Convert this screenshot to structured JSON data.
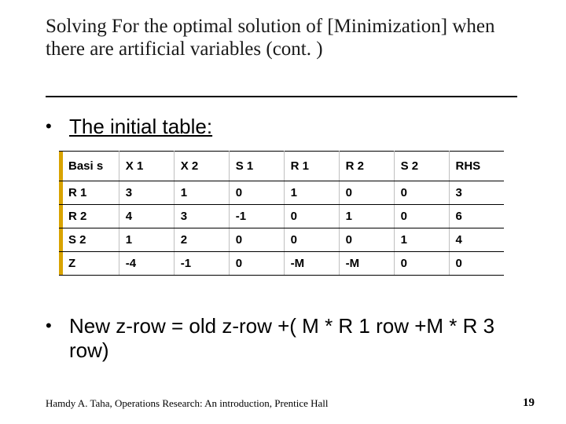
{
  "title": "Solving For the optimal solution of [Minimization] when there are artificial variables (cont. )",
  "bullet_initial": "The initial table:",
  "bullet_zrow": "New z-row = old z-row +(  M * R 1 row +M * R 3 row)",
  "footer_citation": "Hamdy A. Taha, Operations Research: An introduction, Prentice Hall",
  "page_number": "19",
  "table": {
    "type": "table",
    "accent_color": "#d9a300",
    "row_border_color": "#000000",
    "col_border_color": "#bfbfbf",
    "background_color": "#ffffff",
    "font_weight": "bold",
    "font_size_pt": 11,
    "columns": [
      "Basis",
      "X 1",
      "X 2",
      "S 1",
      "R 1",
      "R 2",
      "S 2",
      "RHS"
    ],
    "header_display": [
      "Basi s",
      "X 1",
      "X 2",
      "S 1",
      "R 1",
      "R 2",
      "S 2",
      "RHS"
    ],
    "rows": [
      [
        "R 1",
        "3",
        "1",
        "0",
        "1",
        "0",
        "0",
        "3"
      ],
      [
        "R 2",
        "4",
        "3",
        "-1",
        "0",
        "1",
        "0",
        "6"
      ],
      [
        "S 2",
        "1",
        "2",
        "0",
        "0",
        "0",
        "1",
        "4"
      ],
      [
        "Z",
        "-4",
        "-1",
        "0",
        "-M",
        "-M",
        "0",
        "0"
      ]
    ]
  }
}
